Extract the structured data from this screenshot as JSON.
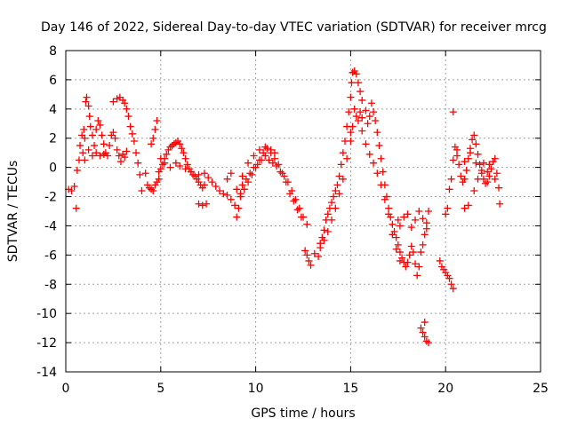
{
  "chart_data": {
    "type": "scatter",
    "title": "Day 146 of 2022, Sidereal Day-to-day VTEC variation (SDTVAR) for receiver mrcg",
    "xlabel": "GPS time / hours",
    "ylabel": "SDTVAR / TECUs",
    "xlim": [
      0,
      25
    ],
    "ylim": [
      -14,
      8
    ],
    "xticks": [
      "0",
      "5",
      "10",
      "15",
      "20",
      "25"
    ],
    "yticks": [
      "8",
      "6",
      "4",
      "2",
      "0",
      "-2",
      "-4",
      "-6",
      "-8",
      "-10",
      "-12",
      "-14"
    ],
    "grid": true,
    "marker": "+",
    "color": "#ff0000",
    "series": [
      {
        "name": "SDTVAR",
        "points": [
          [
            0.15,
            -1.5
          ],
          [
            0.3,
            -1.6
          ],
          [
            0.45,
            -1.3
          ],
          [
            0.55,
            -2.8
          ],
          [
            0.6,
            -0.2
          ],
          [
            0.7,
            0.5
          ],
          [
            0.75,
            1.5
          ],
          [
            0.85,
            2.2
          ],
          [
            0.95,
            2.6
          ],
          [
            1.0,
            2.0
          ],
          [
            1.05,
            4.5
          ],
          [
            1.1,
            4.8
          ],
          [
            1.2,
            4.2
          ],
          [
            1.25,
            3.5
          ],
          [
            1.3,
            2.8
          ],
          [
            1.4,
            2.2
          ],
          [
            1.5,
            1.5
          ],
          [
            1.6,
            2.6
          ],
          [
            1.7,
            3.2
          ],
          [
            1.8,
            2.9
          ],
          [
            1.9,
            2.2
          ],
          [
            2.0,
            1.6
          ],
          [
            2.1,
            1.0
          ],
          [
            2.2,
            0.8
          ],
          [
            2.3,
            1.5
          ],
          [
            2.4,
            2.2
          ],
          [
            2.5,
            2.4
          ],
          [
            2.6,
            2.0
          ],
          [
            2.7,
            1.2
          ],
          [
            2.8,
            0.8
          ],
          [
            2.9,
            0.4
          ],
          [
            3.0,
            0.9
          ],
          [
            3.1,
            0.7
          ],
          [
            3.2,
            1.1
          ],
          [
            2.5,
            4.5
          ],
          [
            2.7,
            4.7
          ],
          [
            2.85,
            4.8
          ],
          [
            3.0,
            4.6
          ],
          [
            3.1,
            4.4
          ],
          [
            3.2,
            4.0
          ],
          [
            3.3,
            3.5
          ],
          [
            3.4,
            2.8
          ],
          [
            3.5,
            2.3
          ],
          [
            3.6,
            1.8
          ],
          [
            3.7,
            1.0
          ],
          [
            3.8,
            0.3
          ],
          [
            3.9,
            -0.5
          ],
          [
            4.0,
            -1.6
          ],
          [
            0.9,
            1.0
          ],
          [
            1.0,
            0.5
          ],
          [
            1.2,
            1.2
          ],
          [
            1.4,
            0.8
          ],
          [
            1.6,
            1.0
          ],
          [
            1.8,
            0.8
          ],
          [
            2.0,
            0.9
          ],
          [
            4.2,
            -0.4
          ],
          [
            4.3,
            -1.2
          ],
          [
            4.4,
            -1.4
          ],
          [
            4.5,
            -1.5
          ],
          [
            4.6,
            -1.6
          ],
          [
            4.7,
            -1.2
          ],
          [
            4.8,
            -1.0
          ],
          [
            4.9,
            -0.8
          ],
          [
            4.5,
            1.6
          ],
          [
            4.6,
            2.0
          ],
          [
            4.7,
            2.6
          ],
          [
            4.8,
            3.2
          ],
          [
            4.9,
            -0.3
          ],
          [
            5.0,
            -0.1
          ],
          [
            5.1,
            0.2
          ],
          [
            5.2,
            0.6
          ],
          [
            5.3,
            0.9
          ],
          [
            5.4,
            1.2
          ],
          [
            5.5,
            1.4
          ],
          [
            5.6,
            1.5
          ],
          [
            5.7,
            1.6
          ],
          [
            5.8,
            1.7
          ],
          [
            5.9,
            1.8
          ],
          [
            6.0,
            1.6
          ],
          [
            6.1,
            1.3
          ],
          [
            6.2,
            1.0
          ],
          [
            6.3,
            0.6
          ],
          [
            6.4,
            0.2
          ],
          [
            6.5,
            -0.1
          ],
          [
            6.6,
            -0.3
          ],
          [
            6.7,
            -0.5
          ],
          [
            6.8,
            -0.6
          ],
          [
            6.9,
            -0.8
          ],
          [
            7.0,
            -1.0
          ],
          [
            7.1,
            -1.2
          ],
          [
            7.2,
            -1.4
          ],
          [
            7.3,
            -1.2
          ],
          [
            7.0,
            -2.5
          ],
          [
            7.2,
            -2.6
          ],
          [
            7.4,
            -2.5
          ],
          [
            5.0,
            0.6
          ],
          [
            5.2,
            0.3
          ],
          [
            5.5,
            0.0
          ],
          [
            5.8,
            0.3
          ],
          [
            6.0,
            0.1
          ],
          [
            6.3,
            -0.1
          ],
          [
            6.6,
            -0.3
          ],
          [
            7.0,
            -0.5
          ],
          [
            7.3,
            -0.4
          ],
          [
            7.5,
            -0.7
          ],
          [
            7.7,
            -1.0
          ],
          [
            7.9,
            -1.3
          ],
          [
            8.1,
            -1.6
          ],
          [
            8.3,
            -1.8
          ],
          [
            8.5,
            -1.9
          ],
          [
            8.7,
            -2.2
          ],
          [
            8.9,
            -2.6
          ],
          [
            9.0,
            -3.4
          ],
          [
            9.1,
            -2.8
          ],
          [
            9.2,
            -1.8
          ],
          [
            9.3,
            -1.2
          ],
          [
            9.5,
            -0.8
          ],
          [
            9.7,
            -0.4
          ],
          [
            9.9,
            0.0
          ],
          [
            10.1,
            0.2
          ],
          [
            10.3,
            0.5
          ],
          [
            10.5,
            0.8
          ],
          [
            10.7,
            0.5
          ],
          [
            10.9,
            0.3
          ],
          [
            11.1,
            0.1
          ],
          [
            11.3,
            -0.3
          ],
          [
            11.5,
            -0.6
          ],
          [
            11.7,
            -1.0
          ],
          [
            11.9,
            -1.6
          ],
          [
            12.1,
            -2.2
          ],
          [
            12.3,
            -2.8
          ],
          [
            12.5,
            -3.4
          ],
          [
            12.7,
            -3.9
          ],
          [
            9.2,
            -2.0
          ],
          [
            9.4,
            -1.5
          ],
          [
            9.6,
            -1.0
          ],
          [
            9.8,
            -0.5
          ],
          [
            10.0,
            0.0
          ],
          [
            10.2,
            0.5
          ],
          [
            10.4,
            1.0
          ],
          [
            10.6,
            1.3
          ],
          [
            10.8,
            1.0
          ],
          [
            11.0,
            0.6
          ],
          [
            11.2,
            0.2
          ],
          [
            11.4,
            -0.4
          ],
          [
            11.6,
            -1.0
          ],
          [
            11.8,
            -1.8
          ],
          [
            12.0,
            -2.3
          ],
          [
            12.2,
            -2.9
          ],
          [
            12.4,
            -3.4
          ],
          [
            9.0,
            -1.5
          ],
          [
            9.3,
            -0.6
          ],
          [
            9.6,
            0.3
          ],
          [
            9.9,
            0.8
          ],
          [
            10.2,
            1.2
          ],
          [
            10.5,
            1.4
          ],
          [
            10.8,
            1.2
          ],
          [
            11.0,
            1.0
          ],
          [
            8.5,
            -0.8
          ],
          [
            8.7,
            -0.4
          ],
          [
            12.6,
            -5.7
          ],
          [
            12.7,
            -6.0
          ],
          [
            12.8,
            -6.4
          ],
          [
            12.9,
            -6.7
          ],
          [
            13.1,
            -5.9
          ],
          [
            13.3,
            -6.1
          ],
          [
            13.4,
            -5.2
          ],
          [
            13.5,
            -4.8
          ],
          [
            13.6,
            -4.3
          ],
          [
            13.7,
            -3.6
          ],
          [
            13.8,
            -3.2
          ],
          [
            13.9,
            -2.8
          ],
          [
            14.0,
            -2.4
          ],
          [
            14.1,
            -2.0
          ],
          [
            14.2,
            -1.6
          ],
          [
            14.3,
            -1.2
          ],
          [
            14.4,
            -0.6
          ],
          [
            14.5,
            0.2
          ],
          [
            14.6,
            1.0
          ],
          [
            14.7,
            1.8
          ],
          [
            14.8,
            2.8
          ],
          [
            14.9,
            3.8
          ],
          [
            15.0,
            4.8
          ],
          [
            15.05,
            5.8
          ],
          [
            15.1,
            6.5
          ],
          [
            15.2,
            6.6
          ],
          [
            15.3,
            6.4
          ],
          [
            15.4,
            5.8
          ],
          [
            15.5,
            5.2
          ],
          [
            15.6,
            4.6
          ],
          [
            15.2,
            4.0
          ],
          [
            15.3,
            3.5
          ],
          [
            15.4,
            3.2
          ],
          [
            15.1,
            2.8
          ],
          [
            15.0,
            2.4
          ],
          [
            15.5,
            3.8
          ],
          [
            15.6,
            3.4
          ],
          [
            15.8,
            3.9
          ],
          [
            15.9,
            3.0
          ],
          [
            16.0,
            3.5
          ],
          [
            16.1,
            4.4
          ],
          [
            16.2,
            3.8
          ],
          [
            16.3,
            3.2
          ],
          [
            16.4,
            2.4
          ],
          [
            16.5,
            1.5
          ],
          [
            16.6,
            0.6
          ],
          [
            16.7,
            -0.3
          ],
          [
            16.8,
            -1.2
          ],
          [
            16.9,
            -2.0
          ],
          [
            17.0,
            -2.8
          ],
          [
            17.1,
            -3.4
          ],
          [
            17.2,
            -3.9
          ],
          [
            17.3,
            -4.4
          ],
          [
            17.4,
            -4.8
          ],
          [
            17.5,
            -5.3
          ],
          [
            17.6,
            -5.8
          ],
          [
            17.7,
            -6.2
          ],
          [
            17.8,
            -6.5
          ],
          [
            17.9,
            -6.8
          ],
          [
            18.0,
            -6.5
          ],
          [
            18.1,
            -6.0
          ],
          [
            18.2,
            -5.4
          ],
          [
            18.3,
            -5.8
          ],
          [
            18.4,
            -6.6
          ],
          [
            18.5,
            -7.4
          ],
          [
            18.6,
            -6.8
          ],
          [
            18.7,
            -5.8
          ],
          [
            18.8,
            -5.3
          ],
          [
            18.9,
            -4.6
          ],
          [
            19.0,
            -3.8
          ],
          [
            19.1,
            -3.0
          ],
          [
            17.5,
            -3.6
          ],
          [
            17.6,
            -4.0
          ],
          [
            17.8,
            -3.4
          ],
          [
            18.0,
            -3.2
          ],
          [
            18.2,
            -4.1
          ],
          [
            18.4,
            -3.6
          ],
          [
            18.6,
            -3.0
          ],
          [
            18.8,
            -3.5
          ],
          [
            19.0,
            -4.2
          ],
          [
            13.4,
            -5.5
          ],
          [
            13.6,
            -5.0
          ],
          [
            13.8,
            -4.4
          ],
          [
            14.0,
            -3.6
          ],
          [
            14.2,
            -2.8
          ],
          [
            14.4,
            -1.8
          ],
          [
            14.6,
            -0.8
          ],
          [
            14.8,
            0.6
          ],
          [
            15.0,
            1.8
          ],
          [
            15.6,
            2.5
          ],
          [
            15.8,
            1.6
          ],
          [
            16.0,
            0.9
          ],
          [
            16.2,
            0.3
          ],
          [
            16.4,
            -0.4
          ],
          [
            16.6,
            -1.2
          ],
          [
            16.8,
            -2.2
          ],
          [
            17.0,
            -3.2
          ],
          [
            17.2,
            -4.6
          ],
          [
            17.4,
            -5.6
          ],
          [
            17.6,
            -6.4
          ],
          [
            18.7,
            -11.0
          ],
          [
            18.8,
            -11.3
          ],
          [
            18.9,
            -11.6
          ],
          [
            19.0,
            -11.9
          ],
          [
            19.1,
            -12.0
          ],
          [
            18.9,
            -10.6
          ],
          [
            19.8,
            -6.8
          ],
          [
            19.9,
            -7.0
          ],
          [
            20.0,
            -7.2
          ],
          [
            20.1,
            -7.4
          ],
          [
            20.2,
            -7.6
          ],
          [
            20.3,
            -8.0
          ],
          [
            20.4,
            -8.3
          ],
          [
            19.7,
            -6.4
          ],
          [
            20.0,
            -3.2
          ],
          [
            20.1,
            -2.8
          ],
          [
            20.2,
            -1.5
          ],
          [
            20.3,
            -0.8
          ],
          [
            20.4,
            0.5
          ],
          [
            20.5,
            1.4
          ],
          [
            20.6,
            0.8
          ],
          [
            20.7,
            0.2
          ],
          [
            20.8,
            -0.6
          ],
          [
            20.9,
            -1.0
          ],
          [
            21.0,
            -0.8
          ],
          [
            21.1,
            -0.2
          ],
          [
            21.2,
            0.6
          ],
          [
            21.3,
            1.3
          ],
          [
            21.4,
            1.9
          ],
          [
            21.5,
            2.2
          ],
          [
            21.6,
            1.6
          ],
          [
            21.7,
            0.9
          ],
          [
            21.8,
            0.2
          ],
          [
            21.9,
            -0.4
          ],
          [
            22.0,
            -0.8
          ],
          [
            22.1,
            -1.1
          ],
          [
            22.2,
            -1.0
          ],
          [
            22.3,
            -0.6
          ],
          [
            22.4,
            -0.1
          ],
          [
            22.5,
            0.4
          ],
          [
            22.6,
            0.6
          ],
          [
            22.7,
            -0.4
          ],
          [
            22.8,
            -1.4
          ],
          [
            22.85,
            -2.5
          ],
          [
            21.0,
            -2.8
          ],
          [
            21.2,
            -2.6
          ],
          [
            21.5,
            -1.6
          ],
          [
            21.7,
            -0.8
          ],
          [
            22.0,
            0.3
          ],
          [
            22.2,
            -0.3
          ],
          [
            20.4,
            3.8
          ],
          [
            20.6,
            1.2
          ],
          [
            21.0,
            0.4
          ],
          [
            21.3,
            1.0
          ],
          [
            21.6,
            0.3
          ],
          [
            21.9,
            -0.2
          ],
          [
            22.3,
            0.2
          ],
          [
            22.6,
            -0.8
          ]
        ]
      }
    ]
  }
}
